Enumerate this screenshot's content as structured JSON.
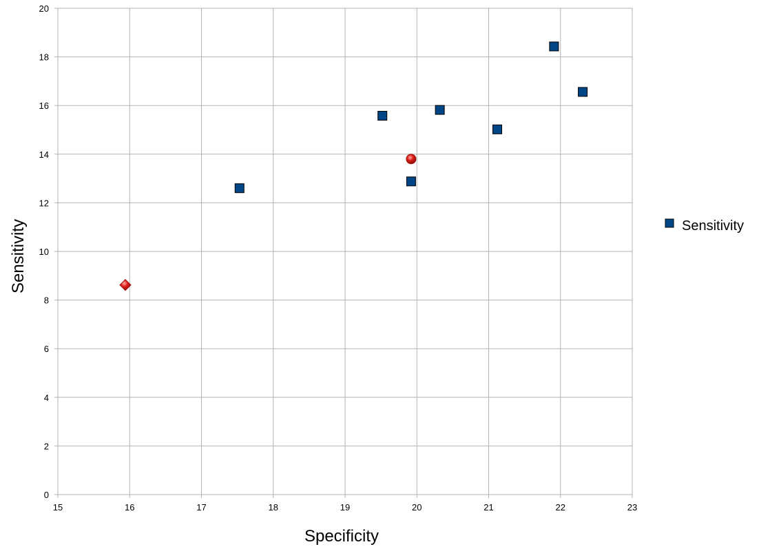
{
  "chart_data": {
    "type": "scatter",
    "title": "",
    "xlabel": "Specificity",
    "ylabel": "Sensitivity",
    "xlim": [
      15,
      23
    ],
    "ylim": [
      0,
      20
    ],
    "xticks": [
      "15",
      "16",
      "17",
      "18",
      "19",
      "20",
      "21",
      "22",
      "23"
    ],
    "yticks": [
      "0",
      "2",
      "4",
      "6",
      "8",
      "10",
      "12",
      "14",
      "16",
      "18",
      "20"
    ],
    "grid": true,
    "legend_position": "right",
    "series": [
      {
        "name": "Sensitivity",
        "marker": "square",
        "color": "#004586",
        "x": [
          17.53,
          19.52,
          19.92,
          20.32,
          21.12,
          21.91,
          22.31
        ],
        "y": [
          12.6,
          15.58,
          12.88,
          15.82,
          15.02,
          18.43,
          16.56
        ]
      }
    ],
    "extra_points": [
      {
        "marker": "diamond",
        "color": "#e0201b",
        "x": 15.94,
        "y": 8.62
      },
      {
        "marker": "circle",
        "color": "#e0201b",
        "x": 19.92,
        "y": 13.8
      }
    ]
  }
}
